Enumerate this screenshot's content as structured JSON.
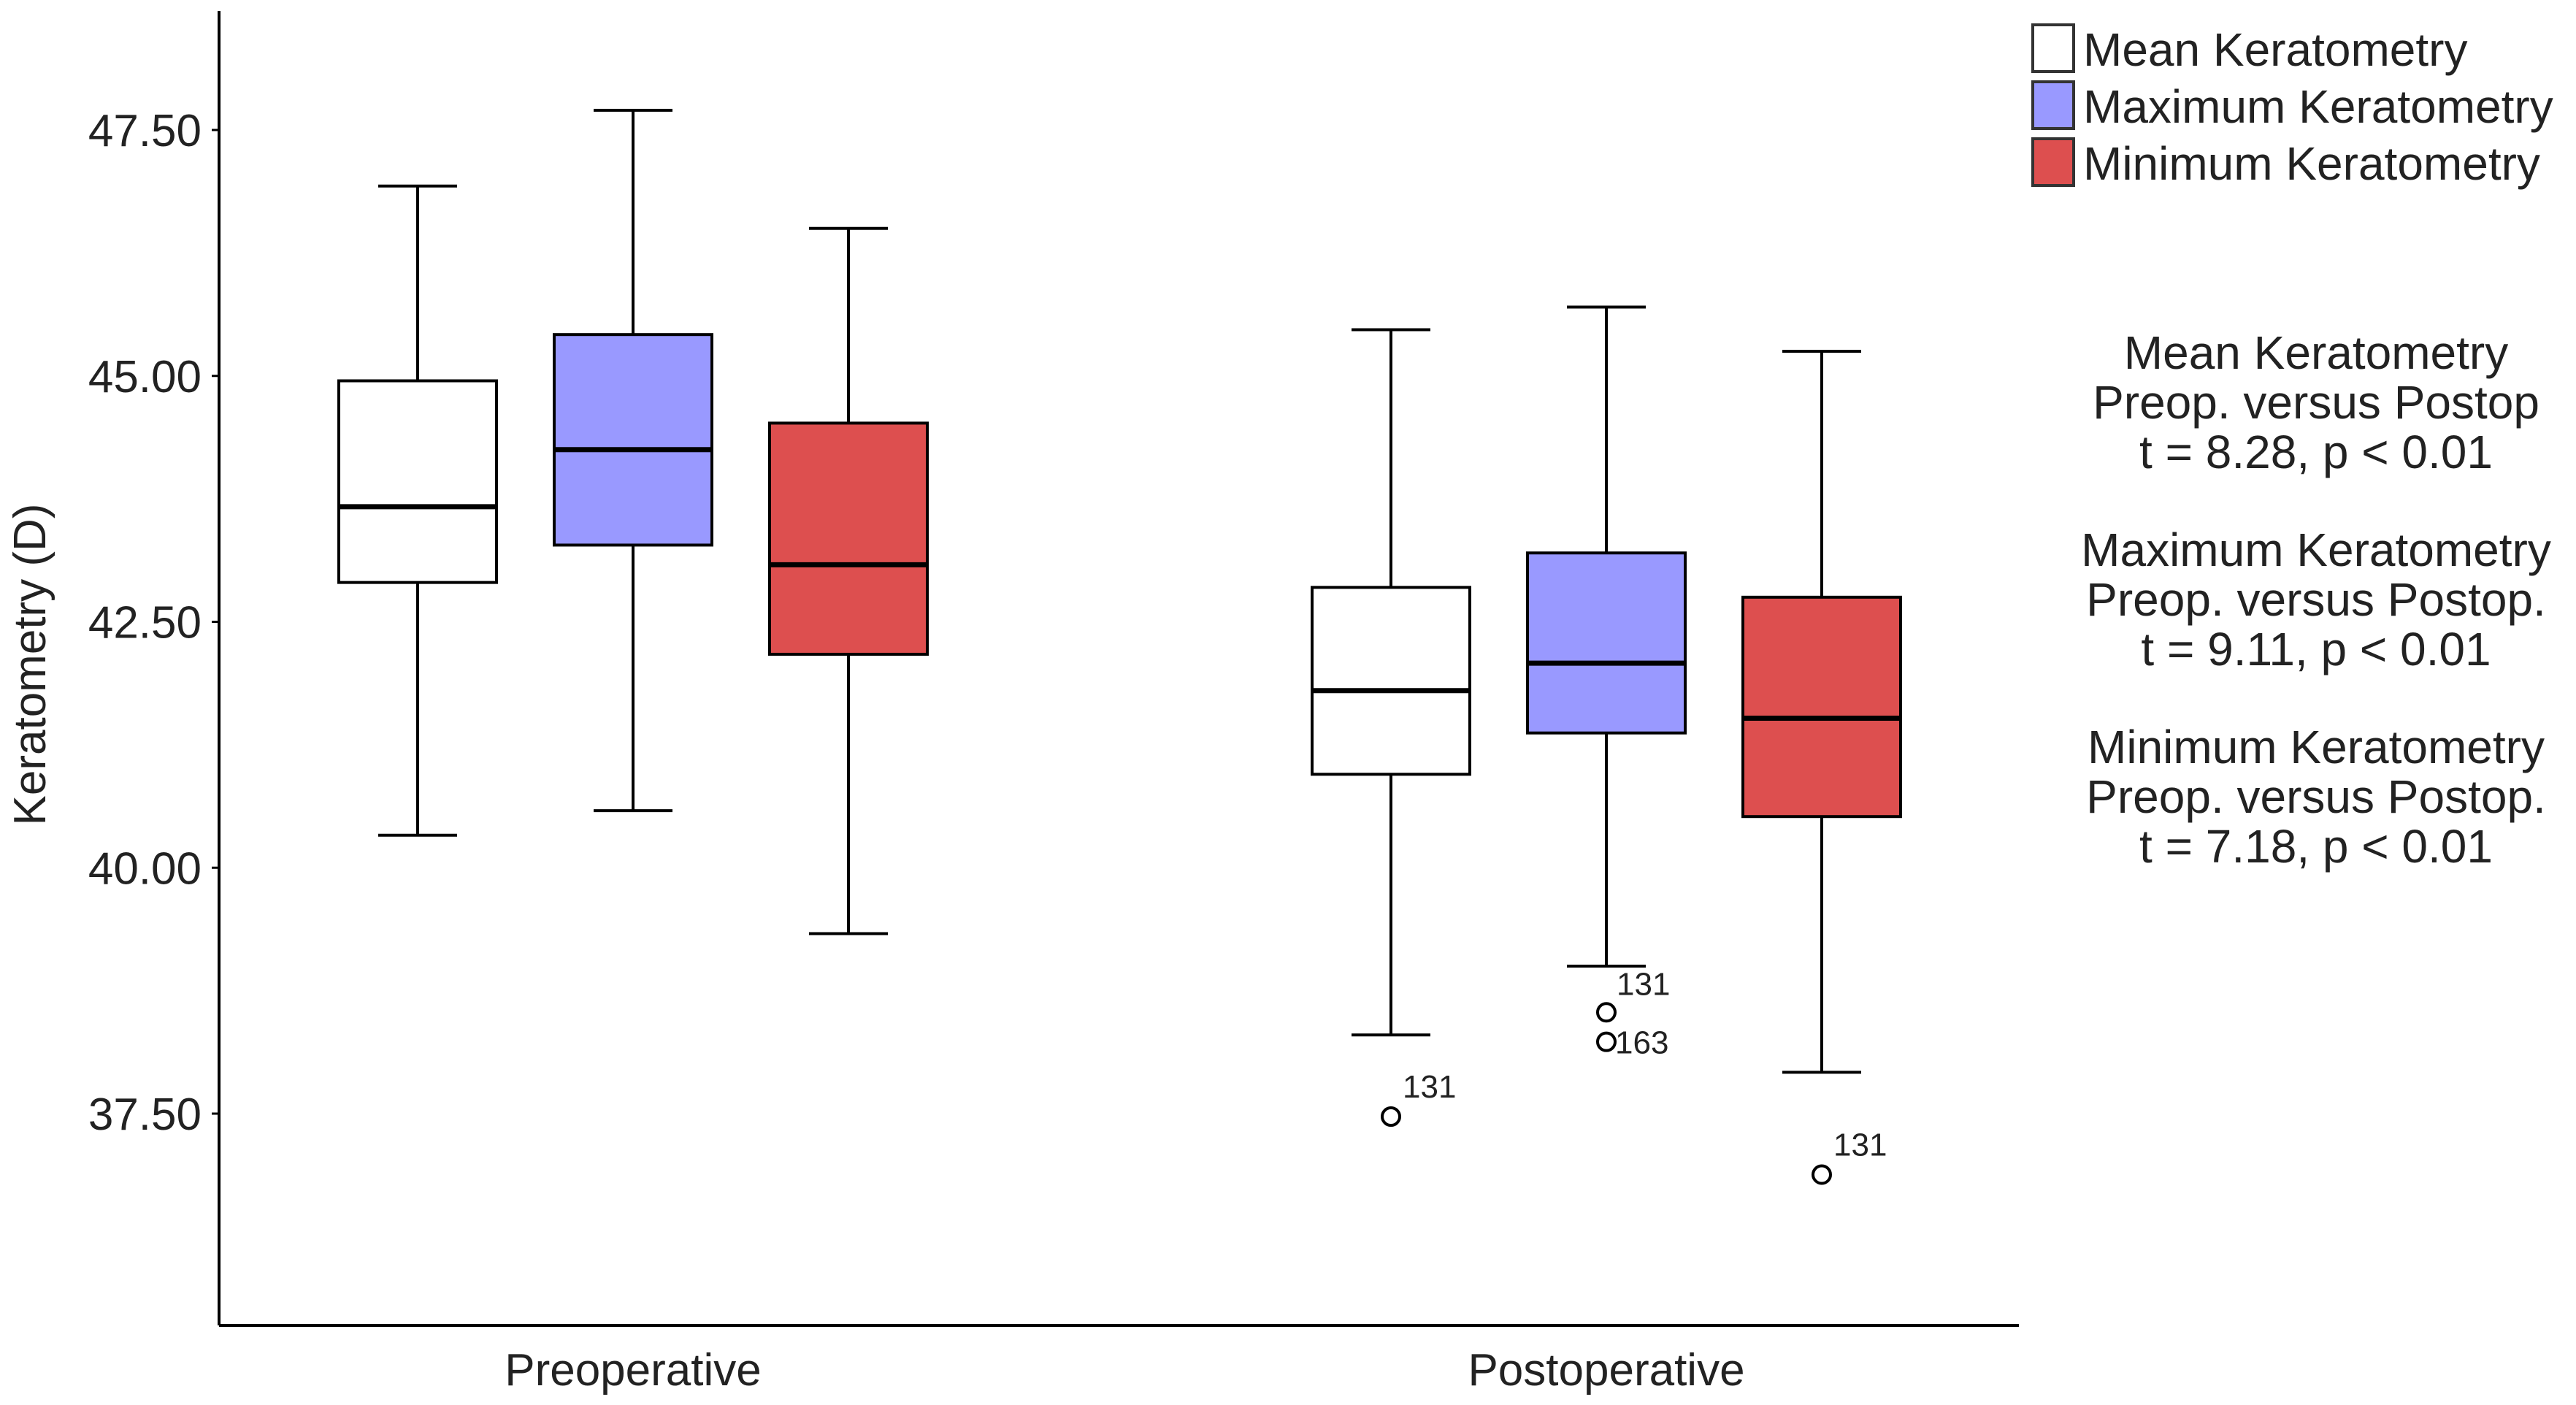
{
  "chart_data": {
    "type": "boxplot",
    "title": "",
    "xlabel": "",
    "ylabel": "Keratometry (D)",
    "ylim": [
      35.5,
      48.75
    ],
    "yticks": [
      37.5,
      40.0,
      42.5,
      45.0,
      47.5
    ],
    "ytick_labels": [
      "37.50",
      "40.00",
      "42.50",
      "45.00",
      "47.50"
    ],
    "grid": false,
    "categories": [
      "Preoperative",
      "Postoperative"
    ],
    "series": [
      {
        "name": "Mean Keratometry",
        "color": "#ffffff",
        "boxes": [
          {
            "whisker_low": 40.33,
            "q1": 42.9,
            "median": 43.67,
            "q3": 44.95,
            "whisker_high": 46.93,
            "outliers": []
          },
          {
            "whisker_low": 38.3,
            "q1": 40.95,
            "median": 41.8,
            "q3": 42.85,
            "whisker_high": 45.47,
            "outliers": [
              {
                "value": 37.47,
                "label": "131"
              }
            ]
          }
        ]
      },
      {
        "name": "Maximum Keratometry",
        "color": "#9999ff",
        "boxes": [
          {
            "whisker_low": 40.58,
            "q1": 43.28,
            "median": 44.25,
            "q3": 45.42,
            "whisker_high": 47.7,
            "outliers": []
          },
          {
            "whisker_low": 39.0,
            "q1": 41.37,
            "median": 42.08,
            "q3": 43.2,
            "whisker_high": 45.7,
            "outliers": [
              {
                "value": 38.53,
                "label": "131"
              },
              {
                "value": 38.23,
                "label": "163"
              }
            ]
          }
        ]
      },
      {
        "name": "Minimum Keratometry",
        "color": "#dd4f4f",
        "boxes": [
          {
            "whisker_low": 39.33,
            "q1": 42.17,
            "median": 43.08,
            "q3": 44.52,
            "whisker_high": 46.5,
            "outliers": []
          },
          {
            "whisker_low": 37.92,
            "q1": 40.52,
            "median": 41.52,
            "q3": 42.75,
            "whisker_high": 45.25,
            "outliers": [
              {
                "value": 36.88,
                "label": "131"
              }
            ]
          }
        ]
      }
    ],
    "legend": {
      "position": "top-right",
      "entries": [
        "Mean Keratometry",
        "Maximum Keratometry",
        "Minimum Keratometry"
      ]
    },
    "annotations": [
      {
        "lines": [
          "Mean Keratometry",
          "Preop. versus Postop",
          "t = 8.28, p < 0.01"
        ]
      },
      {
        "lines": [
          "Maximum Keratometry",
          "Preop. versus Postop.",
          "t = 9.11, p < 0.01"
        ]
      },
      {
        "lines": [
          "Minimum Keratometry",
          "Preop. versus Postop.",
          "t = 7.18, p < 0.01"
        ]
      }
    ]
  }
}
